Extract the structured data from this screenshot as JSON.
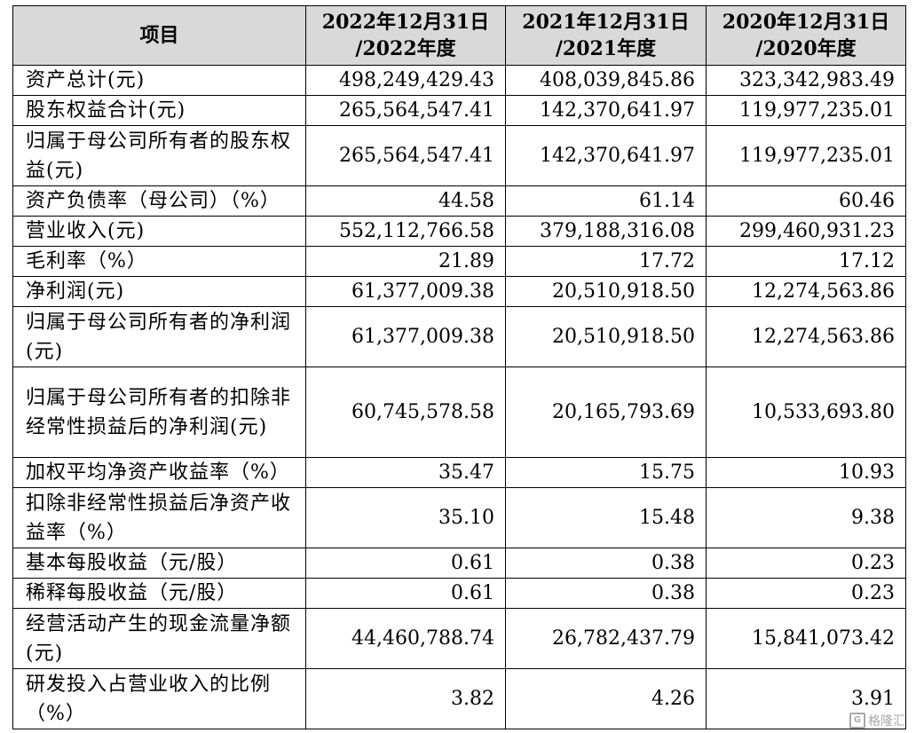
{
  "table": {
    "headers": [
      {
        "line1": "项目",
        "line2": ""
      },
      {
        "line1": "2022年12月31日",
        "line2": "/2022年度"
      },
      {
        "line1": "2021年12月31日",
        "line2": "/2021年度"
      },
      {
        "line1": "2020年12月31日",
        "line2": "/2020年度"
      }
    ],
    "rows": [
      {
        "label": "资产总计(元)",
        "values": [
          "498,249,429.43",
          "408,039,845.86",
          "323,342,983.49"
        ]
      },
      {
        "label": "股东权益合计(元)",
        "values": [
          "265,564,547.41",
          "142,370,641.97",
          "119,977,235.01"
        ]
      },
      {
        "label": "归属于母公司所有者的股东权益(元)",
        "values": [
          "265,564,547.41",
          "142,370,641.97",
          "119,977,235.01"
        ]
      },
      {
        "label": "资产负债率（母公司）（%）",
        "values": [
          "44.58",
          "61.14",
          "60.46"
        ]
      },
      {
        "label": "营业收入(元)",
        "values": [
          "552,112,766.58",
          "379,188,316.08",
          "299,460,931.23"
        ]
      },
      {
        "label": "毛利率（%）",
        "values": [
          "21.89",
          "17.72",
          "17.12"
        ]
      },
      {
        "label": "净利润(元)",
        "values": [
          "61,377,009.38",
          "20,510,918.50",
          "12,274,563.86"
        ]
      },
      {
        "label": "归属于母公司所有者的净利润(元)",
        "values": [
          "61,377,009.38",
          "20,510,918.50",
          "12,274,563.86"
        ]
      },
      {
        "label": "归属于母公司所有者的扣除非经常性损益后的净利润(元)",
        "values": [
          "60,745,578.58",
          "20,165,793.69",
          "10,533,693.80"
        ]
      },
      {
        "label": "加权平均净资产收益率（%）",
        "values": [
          "35.47",
          "15.75",
          "10.93"
        ]
      },
      {
        "label": "扣除非经常性损益后净资产收益率（%）",
        "values": [
          "35.10",
          "15.48",
          "9.38"
        ]
      },
      {
        "label": "基本每股收益（元/股）",
        "values": [
          "0.61",
          "0.38",
          "0.23"
        ]
      },
      {
        "label": "稀释每股收益（元/股）",
        "values": [
          "0.61",
          "0.38",
          "0.23"
        ]
      },
      {
        "label": "经营活动产生的现金流量净额(元)",
        "values": [
          "44,460,788.74",
          "26,782,437.79",
          "15,841,073.42"
        ]
      },
      {
        "label": "研发投入占营业收入的比例（%）",
        "values": [
          "3.82",
          "4.26",
          "3.91"
        ]
      }
    ]
  },
  "watermark": {
    "text": "格隆汇",
    "icon": "gelonghui-logo-icon"
  }
}
